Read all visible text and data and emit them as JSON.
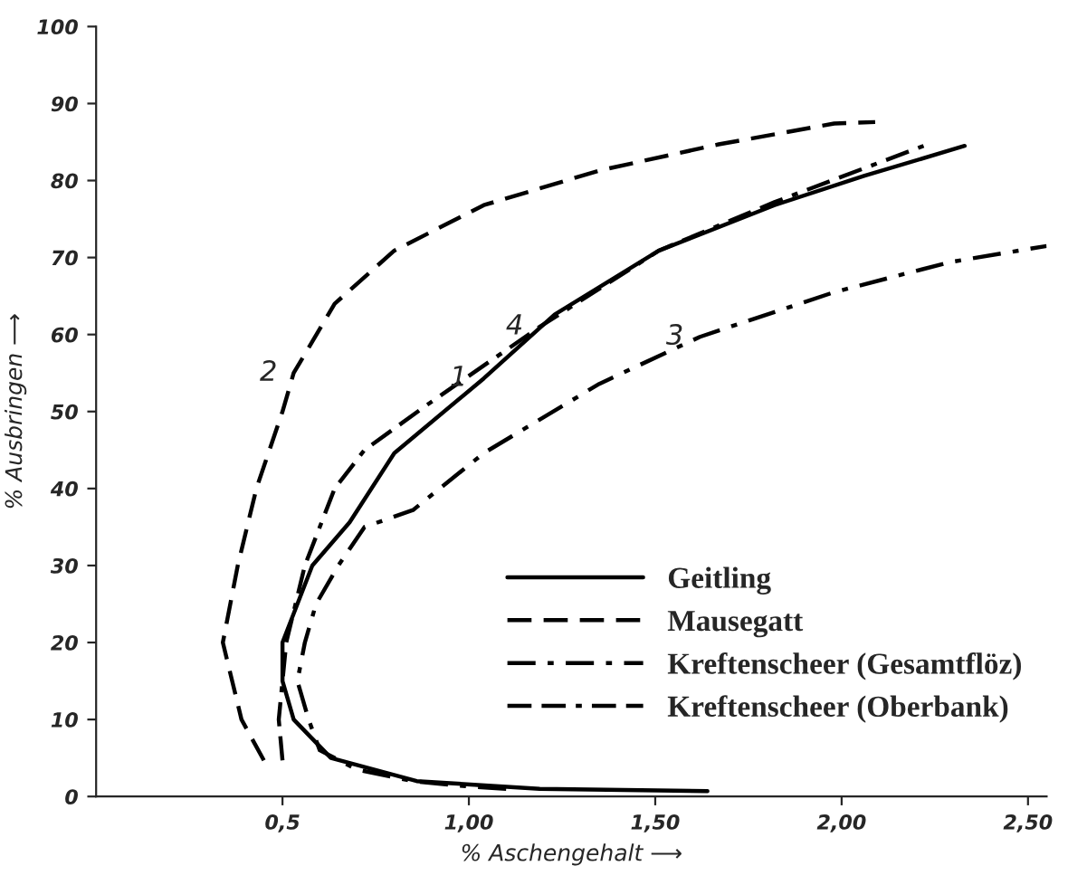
{
  "chart_data": {
    "type": "line",
    "xlabel": "% Aschengehalt ⟶",
    "ylabel": "% Ausbringen ⟶",
    "xlim": [
      0,
      2.55
    ],
    "xticks": [
      {
        "value": 0.5,
        "label": "0,5"
      },
      {
        "value": 1.0,
        "label": "1,00"
      },
      {
        "value": 1.5,
        "label": "1,50"
      },
      {
        "value": 2.0,
        "label": "2,00"
      },
      {
        "value": 2.5,
        "label": "2,50"
      }
    ],
    "ylim": [
      0,
      100
    ],
    "yticks": [
      0,
      10,
      20,
      30,
      40,
      50,
      60,
      70,
      80,
      90,
      100
    ],
    "grid": false,
    "legend": "bottom right",
    "marker": "none",
    "series": [
      {
        "name": "Geitling",
        "color": "#000000",
        "line_style": "solid",
        "x": [
          1.64,
          1.19,
          0.86,
          0.63,
          0.53,
          0.5,
          0.5,
          0.54,
          0.58,
          0.68,
          0.8,
          1.04,
          1.23,
          1.51,
          1.82,
          2.06,
          2.33
        ],
        "values": [
          0.7,
          1,
          2,
          5,
          10,
          15,
          20,
          25,
          30,
          35.6,
          44.6,
          54.3,
          62.6,
          70.9,
          76.8,
          80.6,
          84.5
        ]
      },
      {
        "name": "Mausegatt",
        "color": "#000000",
        "line_style": "dashed",
        "x": [
          0.45,
          0.39,
          0.34,
          0.38,
          0.43,
          0.5,
          0.53,
          0.64,
          0.8,
          1.04,
          1.35,
          1.67,
          1.98,
          2.09
        ],
        "values": [
          4.7,
          10,
          20,
          30,
          40,
          50,
          55,
          64,
          70.9,
          76.8,
          81.3,
          84.7,
          87.4,
          87.6
        ]
      },
      {
        "name": "Kreftenscheer (Gesamtflöz)",
        "color": "#000000",
        "line_style": "dashdot",
        "x": [
          1.1,
          1.0,
          0.85,
          0.7,
          0.6,
          0.57,
          0.54,
          0.56,
          0.59,
          0.65,
          0.72,
          0.85,
          1.04,
          1.35,
          1.62,
          1.98,
          2.29,
          2.55
        ],
        "values": [
          1,
          1.3,
          2,
          3.5,
          6,
          10,
          15,
          20,
          25,
          30,
          35,
          37.2,
          44.6,
          53.6,
          59.7,
          65.5,
          69.4,
          71.5
        ]
      },
      {
        "name": "Kreftenscheer (Oberbank)",
        "color": "#000000",
        "line_style": "dashdashdot",
        "x": [
          0.5,
          0.49,
          0.51,
          0.56,
          0.64,
          0.72,
          0.88,
          1.19,
          1.51,
          1.82,
          2.22
        ],
        "values": [
          4.7,
          10,
          20,
          30,
          40,
          45,
          50.6,
          61,
          70.9,
          77.2,
          84.5
        ]
      }
    ],
    "annotations": [
      "1",
      "2",
      "3",
      "4"
    ]
  }
}
